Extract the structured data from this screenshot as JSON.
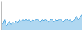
{
  "chart_data": {
    "type": "area",
    "x": [
      0,
      1,
      2,
      3,
      4,
      5,
      6,
      7,
      8,
      9,
      10,
      11,
      12,
      13,
      14,
      15,
      16,
      17,
      18,
      19,
      20,
      21,
      22,
      23,
      24,
      25,
      26,
      27,
      28,
      29,
      30,
      31,
      32,
      33,
      34,
      35,
      36,
      37,
      38,
      39,
      40,
      41,
      42,
      43,
      44,
      45,
      46,
      47,
      48,
      49
    ],
    "values": [
      22,
      15,
      28,
      10,
      18,
      22,
      15,
      20,
      18,
      25,
      20,
      28,
      22,
      28,
      25,
      30,
      25,
      28,
      22,
      28,
      25,
      28,
      30,
      25,
      22,
      28,
      25,
      30,
      25,
      22,
      28,
      30,
      22,
      28,
      25,
      28,
      30,
      25,
      22,
      28,
      30,
      25,
      28,
      22,
      25,
      30,
      38,
      28,
      35,
      42
    ],
    "color": "#4da6e0",
    "xlim": [
      0,
      49
    ],
    "ylim": [
      0,
      80
    ],
    "tick_labels": false
  }
}
